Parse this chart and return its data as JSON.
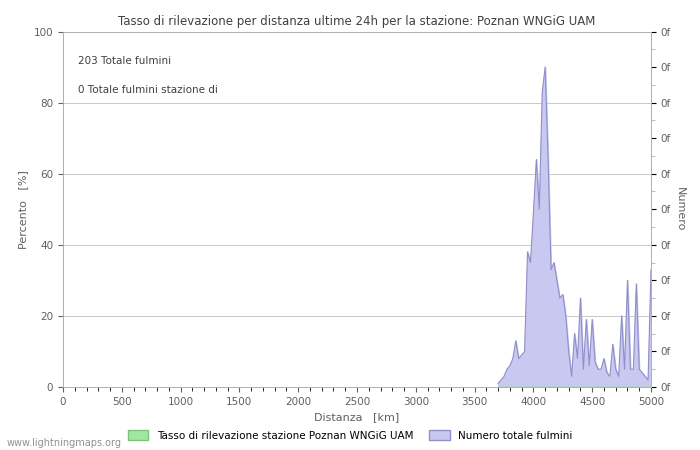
{
  "title": "Tasso di rilevazione per distanza ultime 24h per la stazione: Poznan WNGiG UAM",
  "xlabel": "Distanza   [km]",
  "ylabel_left": "Percento   [%]",
  "ylabel_right": "Numero",
  "annotation_line1": "203 Totale fulmini",
  "annotation_line2": "0 Totale fulmini stazione di",
  "xlim": [
    0,
    5000
  ],
  "ylim": [
    0,
    100
  ],
  "xticks": [
    0,
    500,
    1000,
    1500,
    2000,
    2500,
    3000,
    3500,
    4000,
    4500,
    5000
  ],
  "yticks_left": [
    0,
    20,
    40,
    60,
    80,
    100
  ],
  "watermark": "www.lightningmaps.org",
  "legend_label_green": "Tasso di rilevazione stazione Poznan WNGiG UAM",
  "legend_label_blue": "Numero totale fulmini",
  "fill_color_blue": "#c8c8f0",
  "line_color_blue": "#9090c8",
  "fill_color_green": "#a0e8a0",
  "line_color_green": "#80c080",
  "background_color": "#ffffff",
  "grid_color": "#c8c8c8",
  "title_color": "#404040",
  "label_color": "#606060",
  "tick_color": "#606060",
  "distances": [
    3700,
    3725,
    3750,
    3775,
    3800,
    3825,
    3850,
    3875,
    3900,
    3925,
    3950,
    3975,
    4000,
    4025,
    4050,
    4075,
    4100,
    4125,
    4150,
    4175,
    4200,
    4225,
    4250,
    4275,
    4300,
    4325,
    4350,
    4375,
    4400,
    4425,
    4450,
    4475,
    4500,
    4525,
    4550,
    4575,
    4600,
    4625,
    4650,
    4675,
    4700,
    4725,
    4750,
    4775,
    4800,
    4825,
    4850,
    4875,
    4900,
    4925,
    4950,
    4975,
    5000
  ],
  "values_blue": [
    1,
    2,
    3,
    5,
    6,
    8,
    13,
    8,
    9,
    10,
    38,
    35,
    49,
    64,
    50,
    83,
    90,
    64,
    33,
    35,
    30,
    25,
    26,
    20,
    10,
    3,
    15,
    8,
    25,
    5,
    19,
    6,
    19,
    7,
    5,
    5,
    8,
    4,
    3,
    12,
    5,
    3,
    20,
    5,
    30,
    5,
    5,
    29,
    5,
    4,
    3,
    2,
    33
  ],
  "values_green": [
    0,
    0,
    0,
    0,
    0,
    0,
    0,
    0,
    0,
    0,
    0,
    0,
    0,
    0,
    0,
    0,
    0,
    0,
    0,
    0,
    0,
    0,
    0,
    0,
    0,
    0,
    0,
    0,
    0,
    0,
    0,
    0,
    0,
    0,
    0,
    0,
    0,
    0,
    0,
    0,
    0,
    0,
    0,
    0,
    0,
    0,
    0,
    0,
    0,
    0,
    0,
    0,
    0
  ],
  "right_yticks": [
    0,
    10,
    20,
    30,
    40,
    50,
    60,
    70,
    80,
    90,
    100
  ],
  "right_ytick_labels": [
    "0f",
    "0f",
    "0f",
    "0f",
    "0f",
    "0f",
    "0f",
    "0f",
    "0f",
    "0f",
    "0f"
  ]
}
